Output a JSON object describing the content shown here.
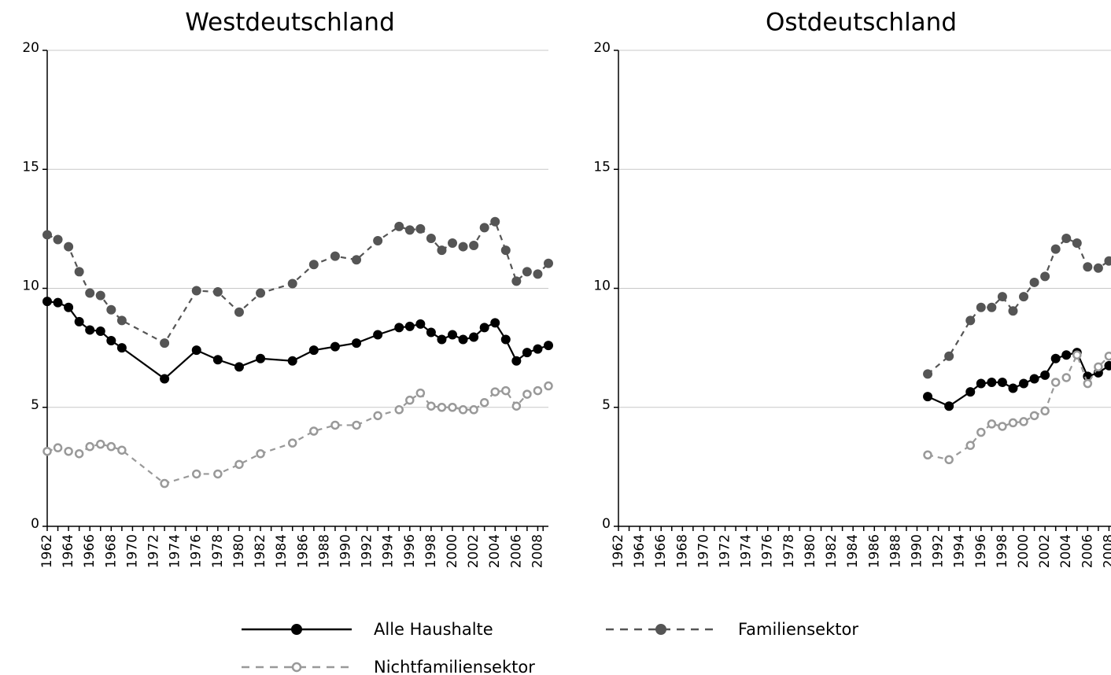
{
  "chart_data": [
    {
      "type": "line",
      "title": "Westdeutschland",
      "x": [
        1962,
        1963,
        1964,
        1965,
        1966,
        1967,
        1968,
        1969,
        1973,
        1976,
        1978,
        1980,
        1982,
        1985,
        1987,
        1989,
        1991,
        1993,
        1995,
        1996,
        1997,
        1998,
        1999,
        2000,
        2001,
        2002,
        2003,
        2004,
        2005,
        2006,
        2007,
        2008,
        2009
      ],
      "series": [
        {
          "name": "Alle Haushalte",
          "color": "#000000",
          "line_style": "solid",
          "marker": "filled",
          "values": [
            9.45,
            9.4,
            9.2,
            8.6,
            8.25,
            8.2,
            7.8,
            7.5,
            6.2,
            7.4,
            7.0,
            6.7,
            7.05,
            6.95,
            7.4,
            7.55,
            7.7,
            8.05,
            8.35,
            8.4,
            8.5,
            8.15,
            7.85,
            8.05,
            7.85,
            7.95,
            8.35,
            8.55,
            7.85,
            6.95,
            7.3,
            7.45,
            7.6
          ]
        },
        {
          "name": "Familiensektor",
          "color": "#555555",
          "line_style": "dashed",
          "marker": "filled",
          "values": [
            12.25,
            12.05,
            11.75,
            10.7,
            9.8,
            9.7,
            9.1,
            8.65,
            7.7,
            9.9,
            9.85,
            9.0,
            9.8,
            10.2,
            11.0,
            11.35,
            11.2,
            12.0,
            12.6,
            12.45,
            12.5,
            12.1,
            11.6,
            11.9,
            11.75,
            11.8,
            12.55,
            12.8,
            11.6,
            10.3,
            10.7,
            10.6,
            11.05
          ]
        },
        {
          "name": "Nichtfamiliensektor",
          "color": "#999999",
          "line_style": "dashed",
          "marker": "open",
          "values": [
            3.15,
            3.3,
            3.15,
            3.05,
            3.35,
            3.45,
            3.35,
            3.2,
            1.8,
            2.2,
            2.2,
            2.6,
            3.05,
            3.5,
            4.0,
            4.25,
            4.25,
            4.65,
            4.9,
            5.3,
            5.6,
            5.05,
            5.0,
            5.0,
            4.9,
            4.9,
            5.2,
            5.65,
            5.7,
            5.05,
            5.55,
            5.7,
            5.9
          ]
        }
      ],
      "xlim": [
        1962,
        2009
      ],
      "xticks": [
        1962,
        1964,
        1966,
        1968,
        1970,
        1972,
        1974,
        1976,
        1978,
        1980,
        1982,
        1984,
        1986,
        1988,
        1990,
        1992,
        1994,
        1996,
        1998,
        2000,
        2002,
        2004,
        2006,
        2008
      ],
      "ylim": [
        0,
        20
      ],
      "yticks": [
        0,
        5,
        10,
        15,
        20
      ],
      "grid": true
    },
    {
      "type": "line",
      "title": "Ostdeutschland",
      "x": [
        1991,
        1993,
        1995,
        1996,
        1997,
        1998,
        1999,
        2000,
        2001,
        2002,
        2003,
        2004,
        2005,
        2006,
        2007,
        2008
      ],
      "series": [
        {
          "name": "Alle Haushalte",
          "color": "#000000",
          "line_style": "solid",
          "marker": "filled",
          "values": [
            5.45,
            5.05,
            5.65,
            6.0,
            6.05,
            6.05,
            5.8,
            6.0,
            6.2,
            6.35,
            7.05,
            7.2,
            7.3,
            6.3,
            6.45,
            6.75
          ]
        },
        {
          "name": "Familiensektor",
          "color": "#555555",
          "line_style": "dashed",
          "marker": "filled",
          "values": [
            6.4,
            7.15,
            8.65,
            9.2,
            9.2,
            9.65,
            9.05,
            9.65,
            10.25,
            10.5,
            11.65,
            12.1,
            11.9,
            10.9,
            10.85,
            11.15
          ]
        },
        {
          "name": "Nichtfamiliensektor",
          "color": "#999999",
          "line_style": "dashed",
          "marker": "open",
          "values": [
            3.0,
            2.8,
            3.4,
            3.95,
            4.3,
            4.2,
            4.35,
            4.4,
            4.65,
            4.85,
            6.05,
            6.25,
            7.2,
            6.0,
            6.7,
            7.15
          ]
        }
      ],
      "xlim": [
        1962,
        2009
      ],
      "xticks": [
        1962,
        1964,
        1966,
        1968,
        1970,
        1972,
        1974,
        1976,
        1978,
        1980,
        1982,
        1984,
        1986,
        1988,
        1990,
        1992,
        1994,
        1996,
        1998,
        2000,
        2002,
        2004,
        2006,
        2008
      ],
      "ylim": [
        0,
        20
      ],
      "yticks": [
        0,
        5,
        10,
        15,
        20
      ],
      "grid": true
    }
  ]
}
